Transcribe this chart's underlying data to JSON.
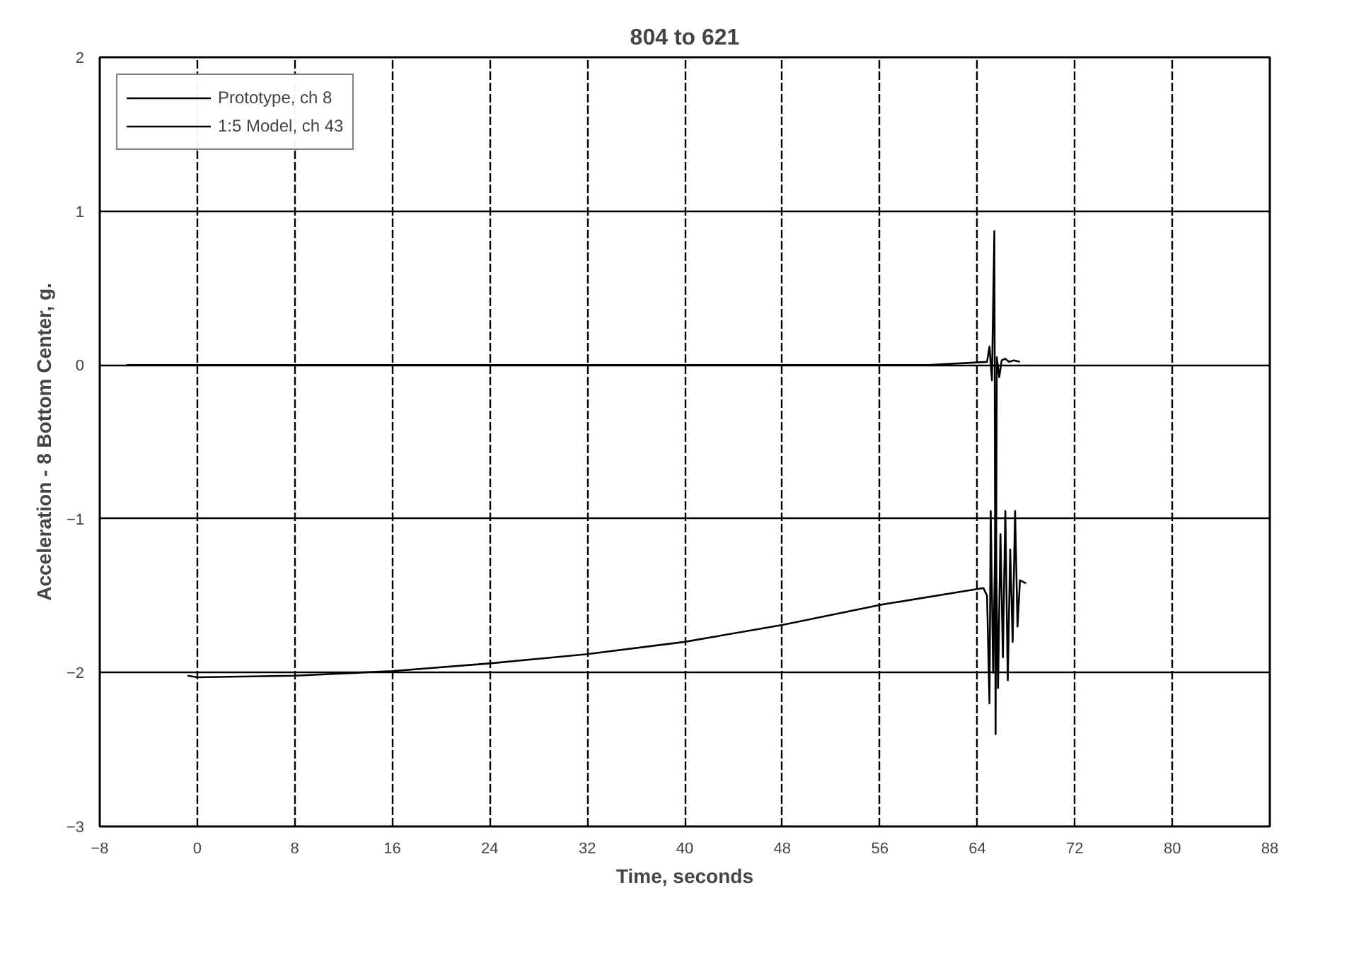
{
  "chart_data": {
    "type": "line",
    "title": "804 to 621",
    "xlabel": "Time, seconds",
    "ylabel": "Acceleration - 8 Bottom Center, g.",
    "xlim": [
      -8,
      88
    ],
    "xticks": [
      -8,
      0,
      8,
      16,
      24,
      32,
      40,
      48,
      56,
      64,
      72,
      80,
      88
    ],
    "ylim": [
      -3,
      2
    ],
    "yticks": [
      -3,
      -2,
      -1,
      0,
      1,
      2
    ],
    "grid": true,
    "legend": "top left",
    "line_style": "solid",
    "series": [
      {
        "name": "Prototype, ch 8",
        "color": "#000000",
        "x": [
          -5.8,
          0,
          20,
          40,
          60,
          64.8,
          65.0,
          65.2,
          65.4,
          65.5,
          65.6,
          65.8,
          66.0,
          66.3,
          66.6,
          67.0,
          67.5
        ],
        "values": [
          0,
          0,
          0,
          0,
          0,
          0.02,
          0.12,
          -0.1,
          0.87,
          -2.4,
          0.05,
          -0.08,
          0.03,
          0.04,
          0.02,
          0.03,
          0.02
        ]
      },
      {
        "name": "1:5 Model, ch 43",
        "color": "#000000",
        "x": [
          -0.8,
          0,
          8,
          16,
          24,
          32,
          40,
          48,
          56,
          64.5,
          64.8,
          65.0,
          65.1,
          65.3,
          65.5,
          65.7,
          65.9,
          66.1,
          66.3,
          66.5,
          66.7,
          66.9,
          67.1,
          67.3,
          67.5,
          68.0
        ],
        "values": [
          -2.02,
          -2.03,
          -2.02,
          -1.99,
          -1.94,
          -1.88,
          -1.8,
          -1.69,
          -1.56,
          -1.45,
          -1.5,
          -2.2,
          -0.95,
          -2.0,
          -1.0,
          -2.1,
          -1.1,
          -1.9,
          -0.95,
          -2.05,
          -1.2,
          -1.8,
          -0.95,
          -1.7,
          -1.4,
          -1.42
        ]
      }
    ]
  }
}
